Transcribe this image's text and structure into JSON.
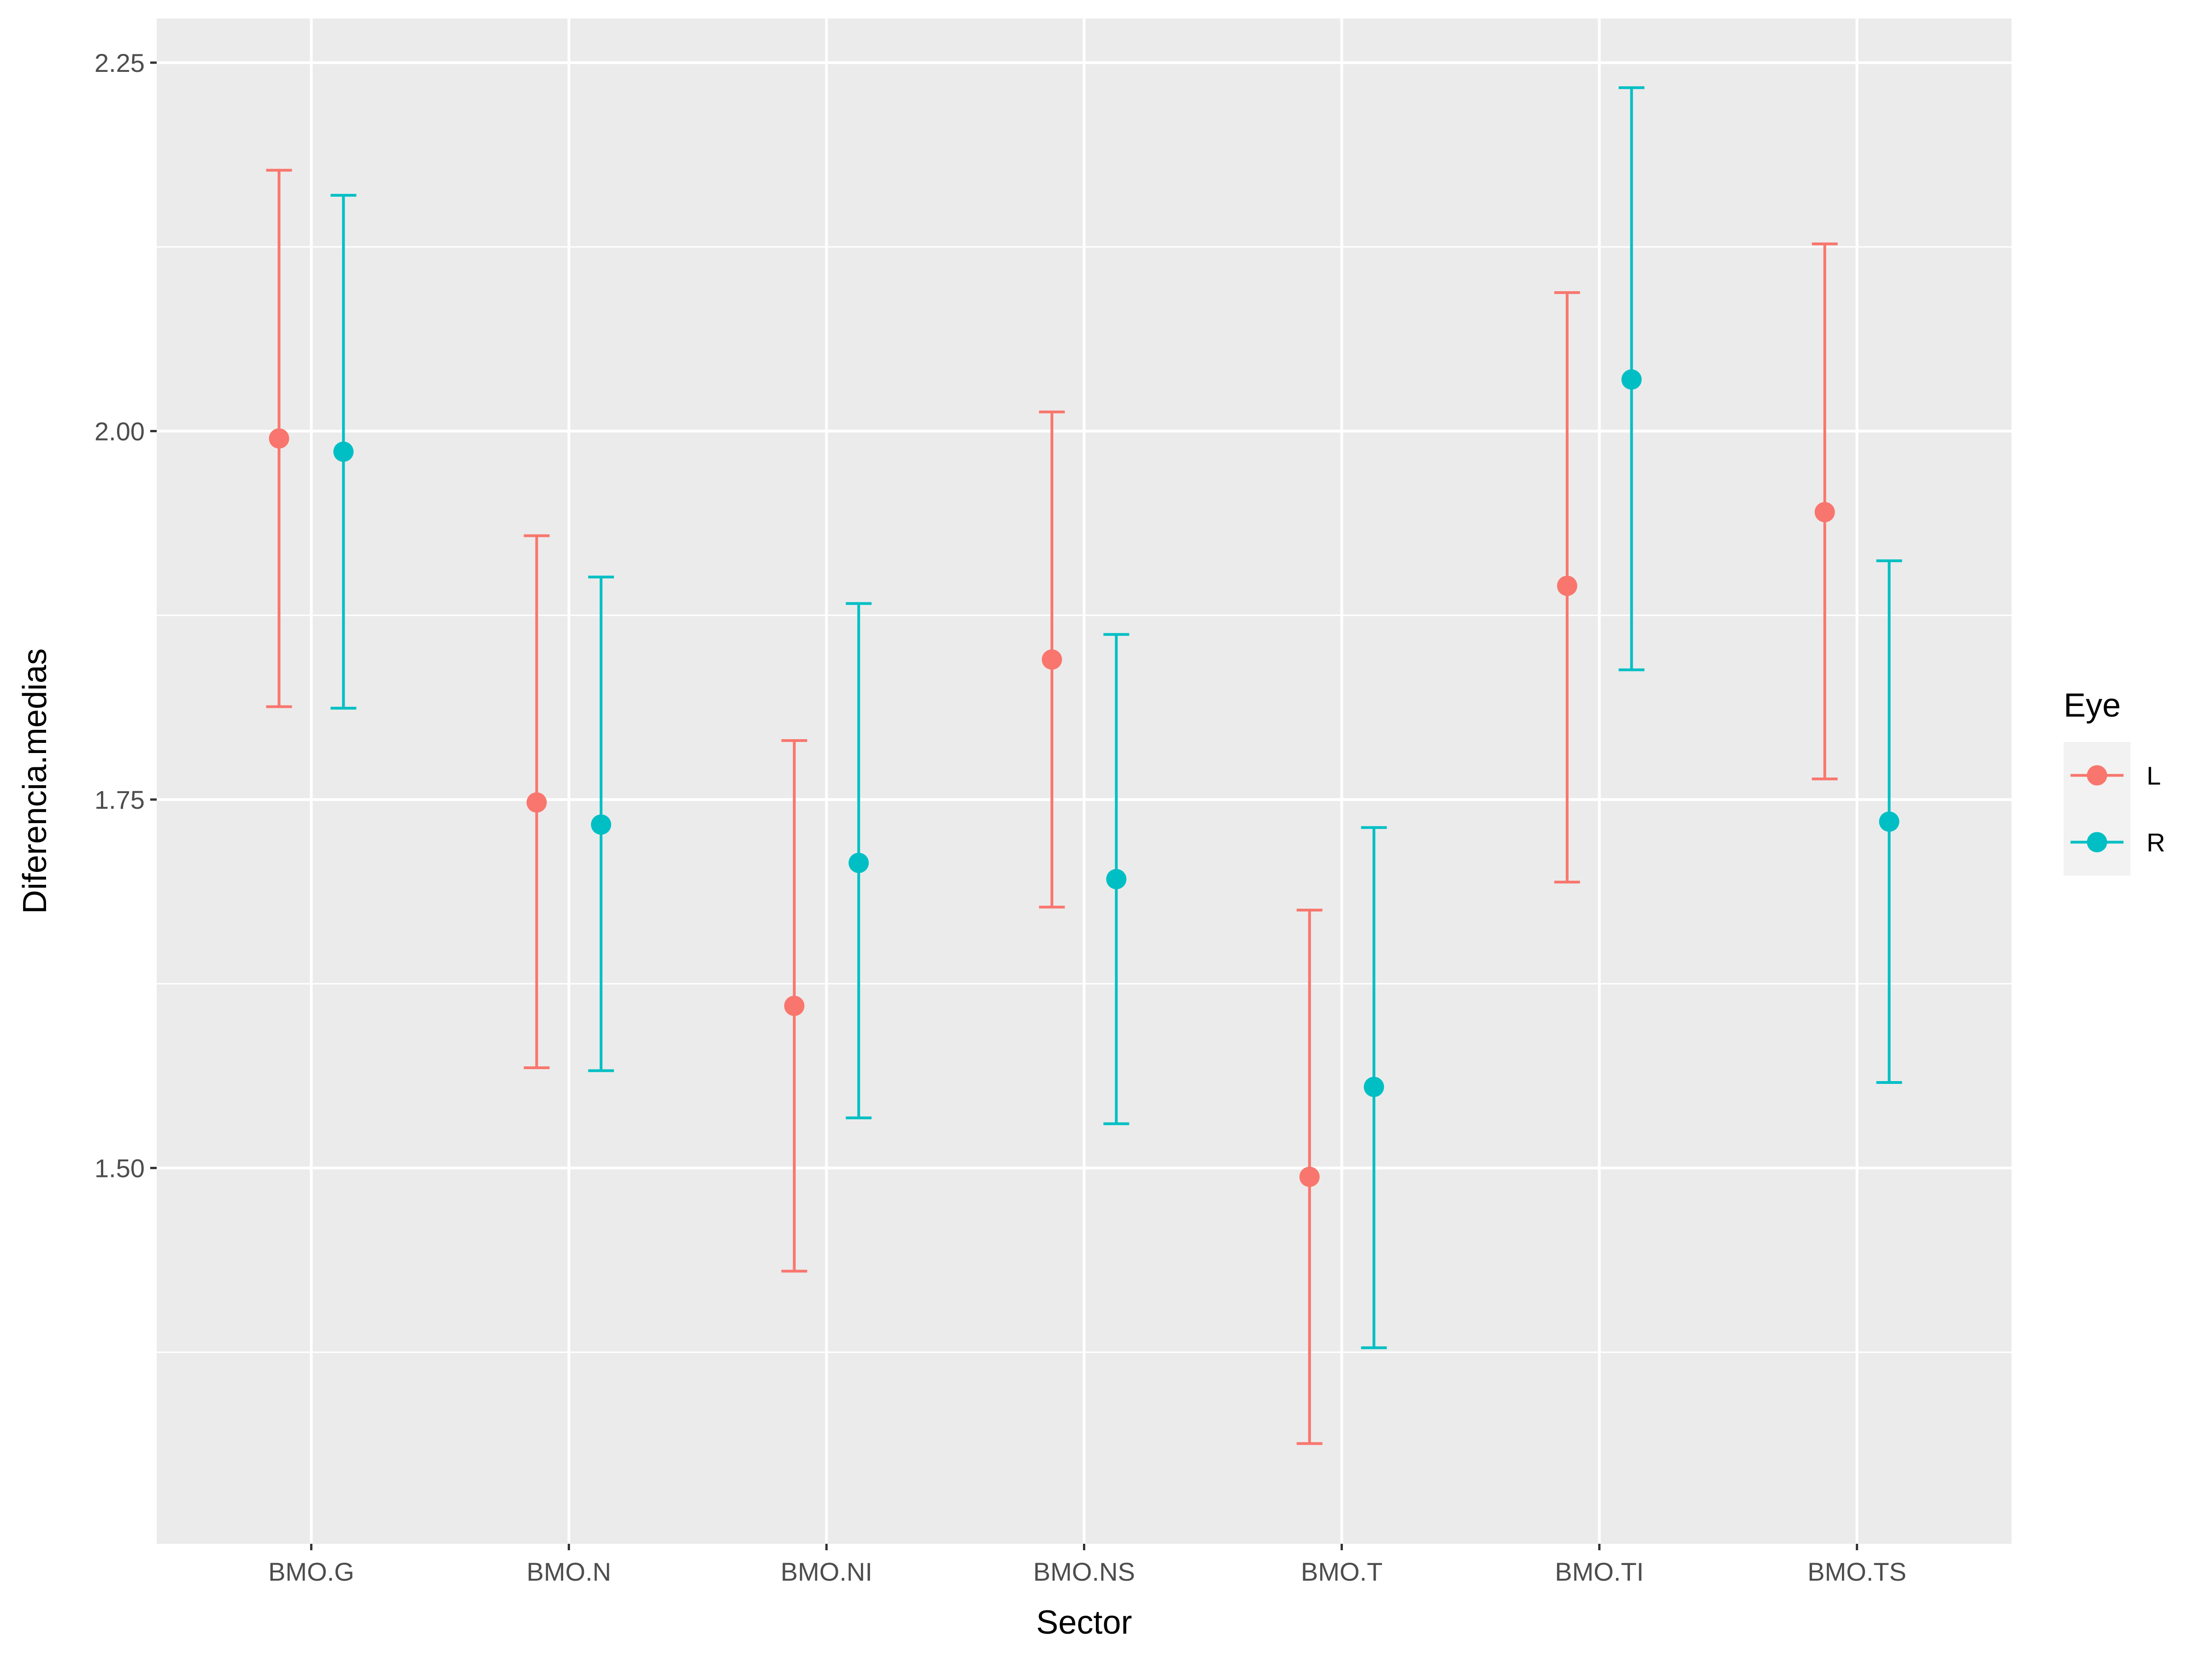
{
  "chart_data": {
    "type": "scatter",
    "subtype": "point-with-errorbars",
    "title": "",
    "xlabel": "Sector",
    "ylabel": "Diferencia.medias",
    "categories": [
      "BMO.G",
      "BMO.N",
      "BMO.NI",
      "BMO.NS",
      "BMO.T",
      "BMO.TI",
      "BMO.TS"
    ],
    "ylim": [
      1.245,
      2.28
    ],
    "yticks": [
      1.5,
      1.75,
      2.0,
      2.25
    ],
    "ytick_labels": [
      "1.50",
      "1.75",
      "2.00",
      "2.25"
    ],
    "grid": true,
    "legend": {
      "title": "Eye",
      "position": "right"
    },
    "series": [
      {
        "name": "L",
        "color": "#F8766D",
        "values": [
          1.995,
          1.748,
          1.61,
          1.845,
          1.494,
          1.895,
          1.945
        ],
        "lower": [
          1.813,
          1.568,
          1.43,
          1.677,
          1.313,
          1.694,
          1.764
        ],
        "upper": [
          2.177,
          1.929,
          1.79,
          2.013,
          1.675,
          2.094,
          2.127
        ]
      },
      {
        "name": "R",
        "color": "#00BFC4",
        "values": [
          1.986,
          1.733,
          1.707,
          1.696,
          1.555,
          2.035,
          1.735
        ],
        "lower": [
          1.812,
          1.566,
          1.534,
          1.53,
          1.378,
          1.838,
          1.558
        ],
        "upper": [
          2.16,
          1.901,
          1.883,
          1.862,
          1.731,
          2.233,
          1.912
        ]
      }
    ]
  }
}
